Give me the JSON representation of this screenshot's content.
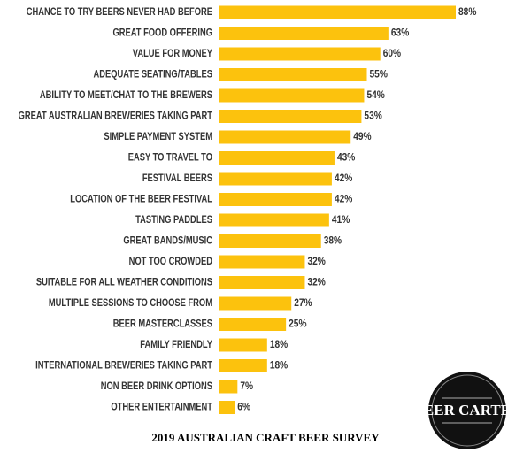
{
  "chart_data": {
    "type": "bar",
    "orientation": "horizontal",
    "title": "2019 AUSTRALIAN CRAFT BEER SURVEY",
    "categories": [
      "CHANCE TO TRY BEERS NEVER HAD BEFORE",
      "GREAT FOOD OFFERING",
      "VALUE FOR MONEY",
      "ADEQUATE SEATING/TABLES",
      "ABILITY TO MEET/CHAT TO THE BREWERS",
      "GREAT AUSTRALIAN BREWERIES TAKING PART",
      "SIMPLE PAYMENT SYSTEM",
      "EASY TO TRAVEL TO",
      "FESTIVAL BEERS",
      "LOCATION OF THE BEER FESTIVAL",
      "TASTING PADDLES",
      "GREAT BANDS/MUSIC",
      "NOT TOO CROWDED",
      "SUITABLE FOR ALL WEATHER CONDITIONS",
      "MULTIPLE SESSIONS TO CHOOSE FROM",
      "BEER MASTERCLASSES",
      "FAMILY FRIENDLY",
      "INTERNATIONAL BREWERIES TAKING PART",
      "NON BEER DRINK OPTIONS",
      "OTHER ENTERTAINMENT"
    ],
    "values": [
      88,
      63,
      60,
      55,
      54,
      53,
      49,
      43,
      42,
      42,
      41,
      38,
      32,
      32,
      27,
      25,
      18,
      18,
      7,
      6
    ],
    "value_labels": [
      "88%",
      "63%",
      "60%",
      "55%",
      "54%",
      "53%",
      "49%",
      "43%",
      "42%",
      "42%",
      "41%",
      "38%",
      "32%",
      "32%",
      "27%",
      "25%",
      "18%",
      "18%",
      "7%",
      "6%"
    ],
    "color": "#fcc20d"
  },
  "logo": "BEER CARTEL"
}
